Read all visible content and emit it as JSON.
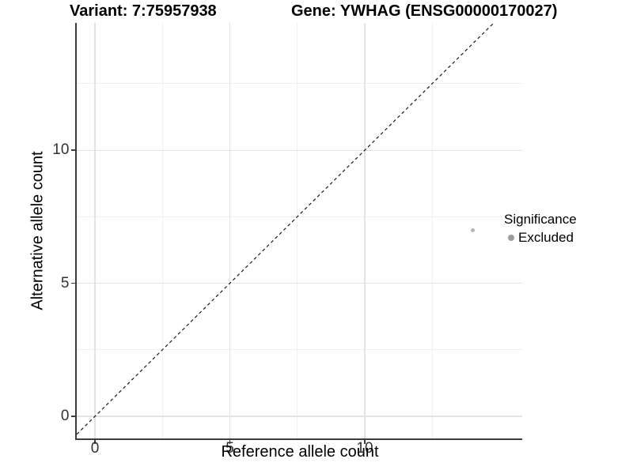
{
  "chart_data": {
    "type": "scatter",
    "titles": {
      "variant": "Variant: 7:75957938",
      "gene": "Gene: YWHAG (ENSG00000170027)"
    },
    "xlabel": "Reference allele count",
    "ylabel": "Alternative allele count",
    "xlim": [
      -0.674,
      15.835
    ],
    "ylim": [
      -0.83,
      14.78
    ],
    "x_major_ticks": [
      0,
      5,
      10
    ],
    "y_major_ticks": [
      0,
      5,
      10
    ],
    "x_minor_gridlines": [
      2.5,
      7.5,
      12.5
    ],
    "y_minor_gridlines": [
      2.5,
      7.5,
      12.5
    ],
    "grid": true,
    "identity_line": {
      "slope": 1,
      "intercept": 0,
      "style": "dashed",
      "color": "#1a1a1a"
    },
    "series": [
      {
        "name": "Excluded",
        "color": "#b5b5b5",
        "points": [
          {
            "x": 14,
            "y": 7
          }
        ]
      }
    ],
    "legend": {
      "title": "Significance",
      "position": "right",
      "items": [
        {
          "label": "Excluded",
          "color": "#9c9c9c"
        }
      ]
    },
    "colors": {
      "background": "#ffffff",
      "axis_line": "#3c3c3c",
      "grid_major": "#e3e3e3",
      "grid_minor": "#f0f0f0",
      "tick_text": "#323232"
    }
  }
}
